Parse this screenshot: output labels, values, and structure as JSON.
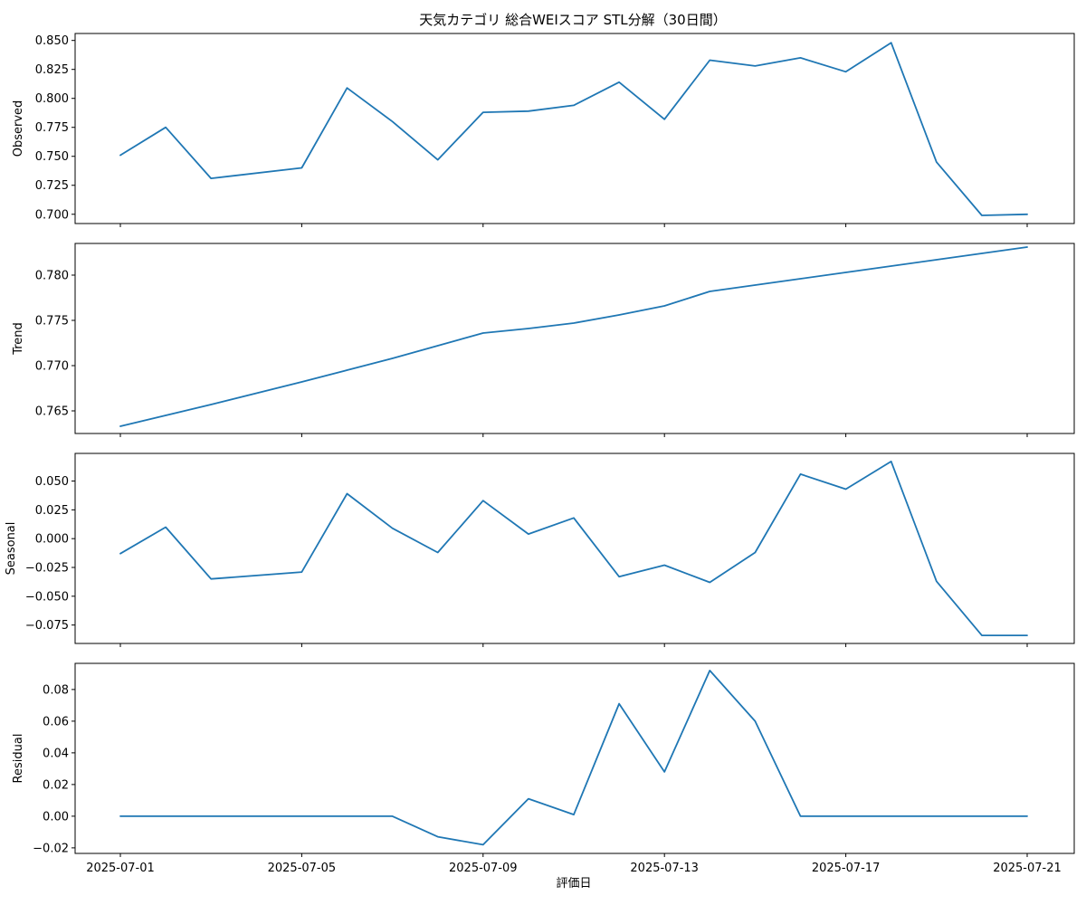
{
  "chart_data": {
    "type": "line",
    "title": "天気カテゴリ 総合WEIスコア STL分解（30日間）",
    "xlabel": "評価日",
    "x": [
      "2025-07-01",
      "2025-07-02",
      "2025-07-03",
      "2025-07-05",
      "2025-07-06",
      "2025-07-07",
      "2025-07-08",
      "2025-07-09",
      "2025-07-10",
      "2025-07-11",
      "2025-07-12",
      "2025-07-13",
      "2025-07-14",
      "2025-07-15",
      "2025-07-16",
      "2025-07-17",
      "2025-07-18",
      "2025-07-19",
      "2025-07-20",
      "2025-07-21"
    ],
    "x_ticks": [
      "2025-07-01",
      "2025-07-05",
      "2025-07-09",
      "2025-07-13",
      "2025-07-17",
      "2025-07-21"
    ],
    "line_color": "#1f77b4",
    "panels": [
      {
        "name": "observed",
        "ylabel": "Observed",
        "ylim": [
          0.692,
          0.856
        ],
        "yticks": [
          0.7,
          0.725,
          0.75,
          0.775,
          0.8,
          0.825,
          0.85
        ],
        "ytick_labels": [
          "0.700",
          "0.725",
          "0.750",
          "0.775",
          "0.800",
          "0.825",
          "0.850"
        ],
        "values": [
          0.751,
          0.775,
          0.731,
          0.74,
          0.809,
          0.78,
          0.747,
          0.788,
          0.789,
          0.794,
          0.814,
          0.782,
          0.833,
          0.828,
          0.835,
          0.823,
          0.848,
          0.745,
          0.699,
          0.7
        ]
      },
      {
        "name": "trend",
        "ylabel": "Trend",
        "ylim": [
          0.7625,
          0.7835
        ],
        "yticks": [
          0.765,
          0.77,
          0.775,
          0.78
        ],
        "ytick_labels": [
          "0.765",
          "0.770",
          "0.775",
          "0.780"
        ],
        "values": [
          0.7633,
          0.7645,
          0.7657,
          0.7682,
          0.7695,
          0.7708,
          0.7722,
          0.7736,
          0.7741,
          0.7747,
          0.7756,
          0.7766,
          0.7782,
          0.7789,
          0.7796,
          0.7803,
          0.781,
          0.7817,
          0.7824,
          0.7831
        ]
      },
      {
        "name": "seasonal",
        "ylabel": "Seasonal",
        "ylim": [
          -0.091,
          0.074
        ],
        "yticks": [
          -0.075,
          -0.05,
          -0.025,
          0.0,
          0.025,
          0.05
        ],
        "ytick_labels": [
          "−0.075",
          "−0.050",
          "−0.025",
          "0.000",
          "0.025",
          "0.050"
        ],
        "values": [
          -0.013,
          0.01,
          -0.035,
          -0.029,
          0.039,
          0.009,
          -0.012,
          0.033,
          0.004,
          0.018,
          -0.033,
          -0.023,
          -0.038,
          -0.012,
          0.056,
          0.043,
          0.067,
          -0.037,
          -0.084,
          -0.084
        ]
      },
      {
        "name": "residual",
        "ylabel": "Residual",
        "ylim": [
          -0.0235,
          0.0965
        ],
        "yticks": [
          -0.02,
          0.0,
          0.02,
          0.04,
          0.06,
          0.08
        ],
        "ytick_labels": [
          "−0.02",
          "0.00",
          "0.02",
          "0.04",
          "0.06",
          "0.08"
        ],
        "values": [
          0.0,
          0.0,
          0.0,
          0.0,
          0.0,
          0.0,
          -0.013,
          -0.018,
          0.011,
          0.001,
          0.071,
          0.028,
          0.092,
          0.06,
          0.0,
          0.0,
          0.0,
          0.0,
          0.0,
          0.0
        ]
      }
    ]
  }
}
